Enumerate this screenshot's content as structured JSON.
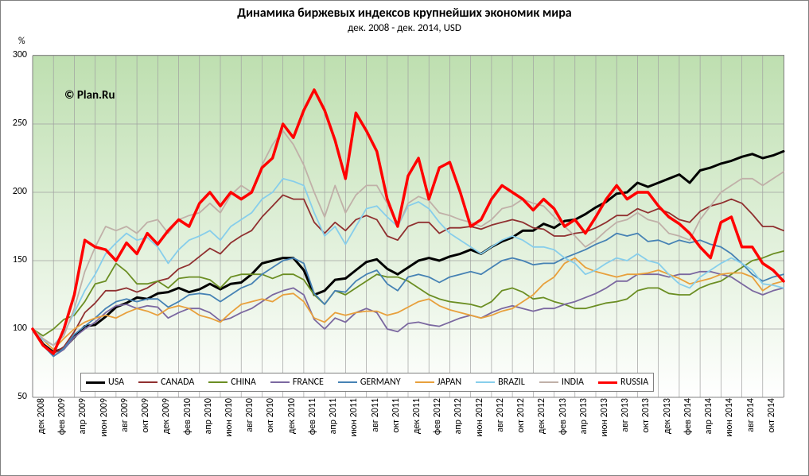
{
  "title": "Динамика биржевых индексов  крупнейших экономик мира",
  "subtitle": "дек. 2008 - дек. 2014,  USD",
  "attribution": "©  Plan.Ru",
  "y_axis": {
    "unit_label": "%",
    "min": 50,
    "max": 300,
    "tick_step": 50,
    "ticks": [
      50,
      100,
      150,
      200,
      250,
      300
    ]
  },
  "x_axis": {
    "labels": [
      "дек 2008",
      "фев 2009",
      "апр 2009",
      "июн 2009",
      "авг 2009",
      "окт 2009",
      "дек 2009",
      "фев 2010",
      "апр 2010",
      "июн 2010",
      "авг 2010",
      "окт 2010",
      "дек 2010",
      "фев 2011",
      "апр 2011",
      "июн 2011",
      "авг 2011",
      "окт 2011",
      "дек 2011",
      "фев 2012",
      "апр 2012",
      "июн 2012",
      "авг 2012",
      "окт 2012",
      "дек 2012",
      "фев 2013",
      "апр 2013",
      "июн 2013",
      "авг 2013",
      "окт 2013",
      "дек 2013",
      "фев 2014",
      "апр 2014",
      "июн 2014",
      "авг 2014",
      "окт 2014"
    ],
    "n_months": 73
  },
  "plot_background": {
    "gradient_top": "#bedfb0",
    "gradient_bottom": "#ffffff"
  },
  "grid_color": "#a0a0a0",
  "border_color": "#808080",
  "series": [
    {
      "name": "USA",
      "label": "USA",
      "color": "#000000",
      "width": 3.0,
      "values": [
        100,
        89,
        83,
        86,
        94,
        102,
        103,
        109,
        116,
        119,
        123,
        122,
        126,
        127,
        130,
        127,
        129,
        133,
        129,
        133,
        134,
        140,
        148,
        150,
        152,
        152,
        143,
        125,
        128,
        136,
        137,
        143,
        149,
        151,
        144,
        140,
        145,
        150,
        152,
        150,
        153,
        155,
        158,
        155,
        160,
        164,
        167,
        172,
        172,
        177,
        174,
        179,
        180,
        184,
        189,
        193,
        199,
        200,
        207,
        204,
        207,
        210,
        213,
        207,
        216,
        218,
        221,
        223,
        226,
        228,
        225,
        227,
        230
      ]
    },
    {
      "name": "CANADA",
      "label": "CANADA",
      "color": "#903030",
      "width": 1.8,
      "values": [
        100,
        88,
        82,
        87,
        98,
        112,
        119,
        128,
        128,
        130,
        127,
        130,
        135,
        137,
        144,
        147,
        153,
        159,
        155,
        163,
        168,
        172,
        182,
        190,
        198,
        195,
        195,
        178,
        170,
        178,
        172,
        180,
        183,
        180,
        168,
        165,
        175,
        178,
        178,
        170,
        174,
        174,
        175,
        173,
        176,
        178,
        180,
        178,
        174,
        173,
        168,
        168,
        170,
        171,
        174,
        178,
        183,
        183,
        188,
        185,
        188,
        185,
        180,
        178,
        186,
        190,
        192,
        195,
        192,
        184,
        175,
        175,
        172
      ]
    },
    {
      "name": "CHINA",
      "label": "CHINA",
      "color": "#6b8e23",
      "width": 1.8,
      "values": [
        100,
        95,
        100,
        107,
        110,
        120,
        133,
        135,
        148,
        142,
        133,
        133,
        135,
        130,
        137,
        138,
        138,
        136,
        130,
        138,
        140,
        140,
        140,
        137,
        140,
        140,
        136,
        125,
        118,
        128,
        125,
        130,
        135,
        140,
        138,
        138,
        135,
        130,
        125,
        122,
        120,
        119,
        118,
        116,
        120,
        128,
        130,
        127,
        122,
        123,
        120,
        118,
        115,
        115,
        117,
        119,
        120,
        122,
        128,
        130,
        130,
        126,
        125,
        125,
        130,
        133,
        135,
        140,
        145,
        150,
        152,
        155,
        157
      ]
    },
    {
      "name": "FRANCE",
      "label": "FRANCE",
      "color": "#7b68a0",
      "width": 1.8,
      "values": [
        100,
        88,
        80,
        85,
        94,
        100,
        105,
        112,
        117,
        118,
        115,
        117,
        116,
        108,
        112,
        115,
        115,
        112,
        106,
        108,
        112,
        115,
        120,
        125,
        128,
        130,
        125,
        107,
        100,
        108,
        105,
        112,
        115,
        112,
        100,
        98,
        104,
        105,
        103,
        102,
        105,
        108,
        110,
        108,
        112,
        115,
        117,
        115,
        113,
        115,
        115,
        118,
        120,
        123,
        126,
        130,
        135,
        135,
        140,
        140,
        140,
        138,
        140,
        140,
        142,
        142,
        140,
        138,
        133,
        128,
        125,
        128,
        130
      ]
    },
    {
      "name": "GERMANY",
      "label": "GERMANY",
      "color": "#4682b4",
      "width": 1.8,
      "values": [
        100,
        88,
        80,
        86,
        96,
        102,
        108,
        115,
        120,
        122,
        120,
        122,
        122,
        116,
        120,
        125,
        126,
        125,
        120,
        125,
        130,
        133,
        140,
        145,
        150,
        152,
        148,
        126,
        118,
        128,
        127,
        135,
        140,
        143,
        133,
        128,
        138,
        140,
        138,
        134,
        138,
        140,
        142,
        140,
        145,
        150,
        152,
        150,
        147,
        148,
        148,
        152,
        155,
        158,
        162,
        165,
        170,
        168,
        170,
        164,
        165,
        162,
        165,
        163,
        165,
        162,
        160,
        155,
        148,
        140,
        135,
        138,
        140
      ]
    },
    {
      "name": "JAPAN",
      "label": "JAPAN",
      "color": "#e8a03c",
      "width": 1.8,
      "values": [
        100,
        92,
        85,
        93,
        100,
        105,
        108,
        110,
        108,
        112,
        115,
        113,
        110,
        115,
        117,
        115,
        110,
        108,
        105,
        112,
        118,
        120,
        122,
        120,
        125,
        126,
        120,
        108,
        105,
        112,
        110,
        112,
        113,
        113,
        110,
        112,
        116,
        120,
        122,
        117,
        114,
        112,
        110,
        108,
        110,
        113,
        115,
        120,
        125,
        133,
        138,
        148,
        152,
        145,
        142,
        140,
        138,
        140,
        140,
        141,
        143,
        140,
        137,
        133,
        135,
        137,
        140,
        141,
        141,
        138,
        128,
        133,
        135
      ]
    },
    {
      "name": "BRAZIL",
      "label": "BRAZIL",
      "color": "#87ceeb",
      "width": 1.8,
      "values": [
        100,
        92,
        88,
        97,
        112,
        128,
        140,
        155,
        163,
        170,
        165,
        167,
        160,
        148,
        158,
        165,
        168,
        172,
        165,
        175,
        180,
        185,
        195,
        200,
        210,
        208,
        205,
        185,
        168,
        175,
        162,
        175,
        188,
        190,
        182,
        175,
        190,
        193,
        188,
        178,
        170,
        165,
        160,
        155,
        160,
        165,
        168,
        165,
        160,
        160,
        158,
        152,
        148,
        140,
        143,
        148,
        152,
        150,
        155,
        150,
        148,
        140,
        133,
        130,
        138,
        143,
        148,
        152,
        148,
        143,
        133,
        132,
        130
      ]
    },
    {
      "name": "INDIA",
      "label": "INDIA",
      "color": "#c0b0a8",
      "width": 1.8,
      "values": [
        100,
        93,
        88,
        95,
        115,
        142,
        160,
        175,
        172,
        175,
        170,
        178,
        180,
        170,
        180,
        183,
        185,
        192,
        185,
        198,
        205,
        200,
        220,
        235,
        245,
        235,
        220,
        200,
        182,
        205,
        185,
        198,
        205,
        205,
        192,
        175,
        192,
        197,
        194,
        185,
        183,
        180,
        178,
        175,
        180,
        188,
        190,
        195,
        192,
        190,
        182,
        175,
        168,
        160,
        165,
        172,
        178,
        180,
        185,
        180,
        178,
        170,
        168,
        165,
        180,
        190,
        200,
        205,
        210,
        210,
        205,
        210,
        215
      ]
    },
    {
      "name": "RUSSIA",
      "label": "RUSSIA",
      "color": "#ff0000",
      "width": 3.5,
      "values": [
        100,
        88,
        82,
        100,
        125,
        165,
        160,
        158,
        150,
        163,
        155,
        170,
        162,
        172,
        180,
        175,
        192,
        200,
        190,
        200,
        195,
        200,
        218,
        225,
        250,
        240,
        260,
        275,
        260,
        238,
        210,
        258,
        245,
        230,
        195,
        175,
        212,
        225,
        195,
        218,
        222,
        200,
        175,
        180,
        195,
        205,
        200,
        195,
        187,
        195,
        188,
        175,
        180,
        170,
        182,
        195,
        205,
        195,
        200,
        200,
        190,
        182,
        177,
        170,
        160,
        152,
        178,
        182,
        160,
        160,
        148,
        143,
        135
      ]
    }
  ],
  "legend": {
    "items": [
      "USA",
      "CANADA",
      "CHINA",
      "FRANCE",
      "GERMANY",
      "JAPAN",
      "BRAZIL",
      "INDIA",
      "RUSSIA"
    ]
  }
}
